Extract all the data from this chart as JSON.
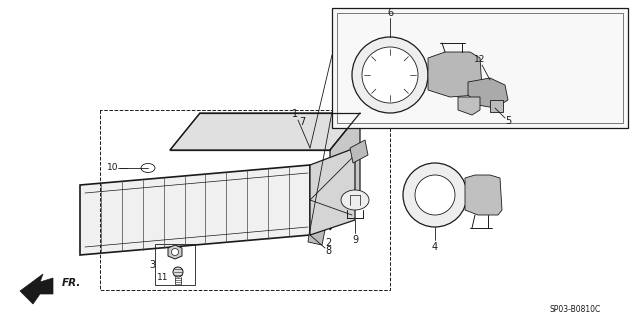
{
  "bg_color": "#ffffff",
  "line_color": "#1a1a1a",
  "part_code": "SP03-B0810C",
  "gray_light": "#d8d8d8",
  "gray_med": "#b0b0b0",
  "gray_dark": "#888888"
}
